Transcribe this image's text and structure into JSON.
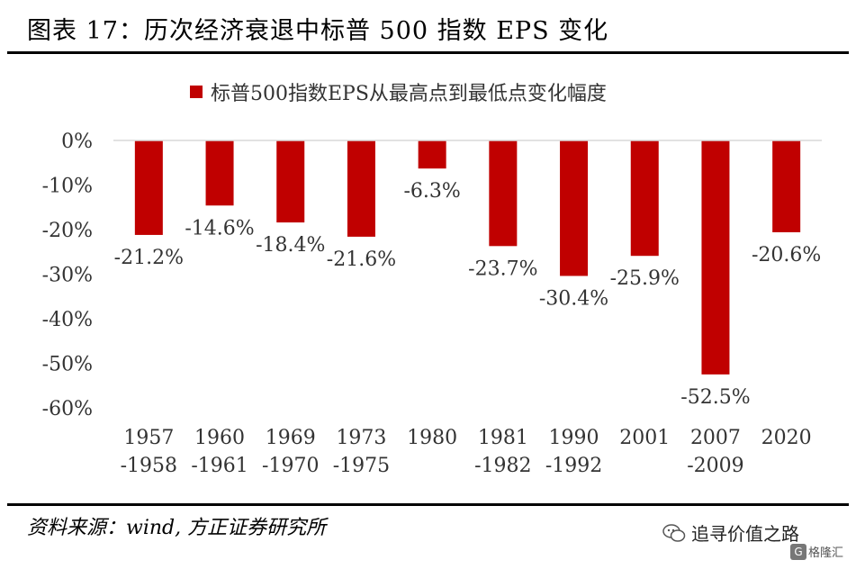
{
  "title": "图表 17：历次经济衰退中标普 500 指数 EPS 变化",
  "source": "资料来源：wind, 方正证券研究所",
  "watermark": {
    "text": "追寻价值之路",
    "corner": "格隆汇",
    "corner_icon": "G",
    "icon": "wechat-icon"
  },
  "colors": {
    "bar": "#c00000",
    "axis": "#d9d9d9",
    "text": "#333333"
  },
  "chart_data": {
    "type": "bar",
    "categories": [
      [
        "1957",
        "-1958"
      ],
      [
        "1960",
        "-1961"
      ],
      [
        "1969",
        "-1970"
      ],
      [
        "1973",
        "-1975"
      ],
      [
        "1980"
      ],
      [
        "1981",
        "-1982"
      ],
      [
        "1990",
        "-1992"
      ],
      [
        "2001"
      ],
      [
        "2007",
        "-2009"
      ],
      [
        "2020"
      ]
    ],
    "series": [
      {
        "name": "标普500指数EPS从最高点到最低点变化幅度",
        "values": [
          -21.2,
          -14.6,
          -18.4,
          -21.6,
          -6.3,
          -23.7,
          -30.4,
          -25.9,
          -52.5,
          -20.6
        ],
        "labels": [
          "-21.2%",
          "-14.6%",
          "-18.4%",
          "-21.6%",
          "-6.3%",
          "-23.7%",
          "-30.4%",
          "-25.9%",
          "-52.5%",
          "-20.6%"
        ]
      }
    ],
    "yticks": [
      0,
      -10,
      -20,
      -30,
      -40,
      -50,
      -60
    ],
    "ytick_labels": [
      "0%",
      "-10%",
      "-20%",
      "-30%",
      "-40%",
      "-50%",
      "-60%"
    ],
    "ylim": [
      -60,
      0
    ],
    "legend_position": "top",
    "grid": false
  }
}
